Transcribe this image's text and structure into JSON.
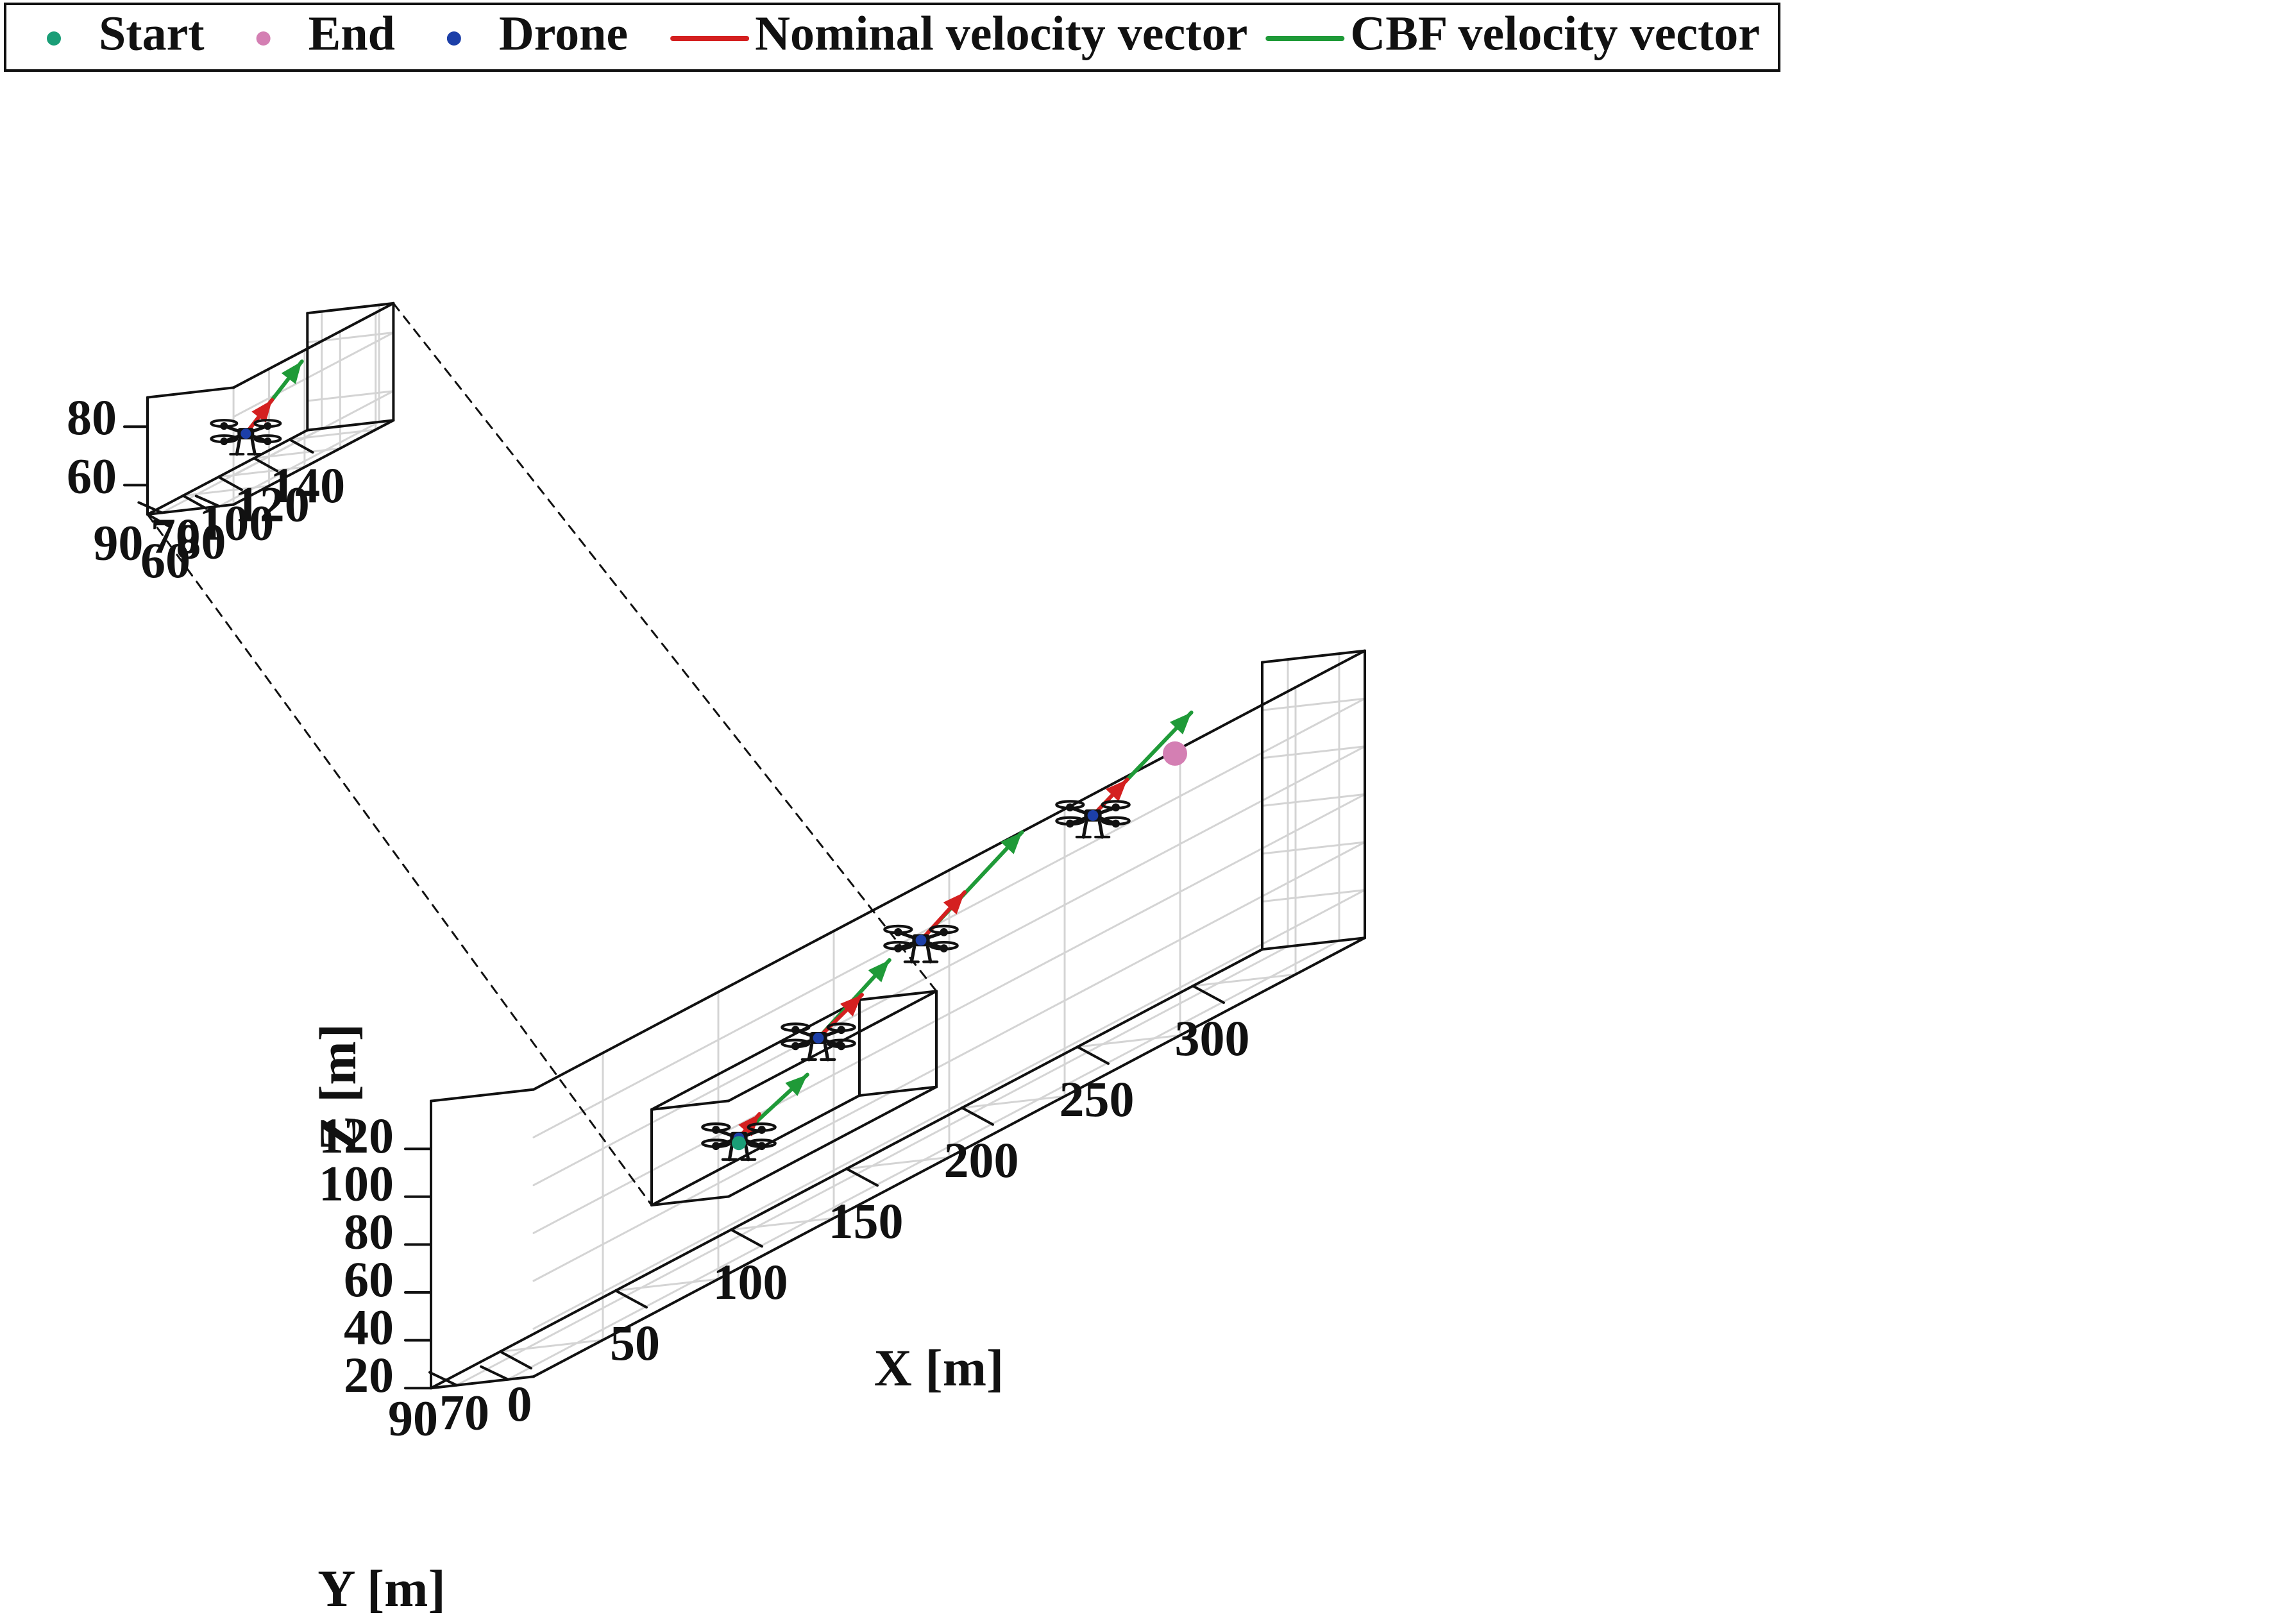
{
  "chart_data": {
    "type": "scatter",
    "projection": "3d",
    "legend": {
      "placement": "top-left",
      "entries": [
        {
          "label": "Start",
          "marker": "dot",
          "color": "#1a9e77"
        },
        {
          "label": "End",
          "marker": "dot",
          "color": "#d47fb3"
        },
        {
          "label": "Drone",
          "marker": "dot",
          "color": "#1c3fa8"
        },
        {
          "label": "Nominal velocity vector",
          "marker": "line",
          "color": "#d42020"
        },
        {
          "label": "CBF velocity vector",
          "marker": "line",
          "color": "#1f9a38"
        }
      ]
    },
    "colors": {
      "nominal": "#d42020",
      "cbf": "#1f9a38",
      "start": "#1a9e77",
      "end": "#d47fb3",
      "drone": "#1c3fa8"
    },
    "main": {
      "xlabel": "X [m]",
      "ylabel": "Y [m]",
      "zlabel": "Z [m]",
      "xticks": [
        0,
        50,
        100,
        150,
        200,
        250,
        300
      ],
      "yticks": [
        90,
        70
      ],
      "zticks": [
        20,
        40,
        60,
        80,
        100,
        120
      ],
      "xlim": [
        -30,
        330
      ],
      "ylim": [
        60,
        100
      ],
      "zlim": [
        20,
        140
      ],
      "grid": true,
      "start": {
        "x": 70,
        "y": 70,
        "z": 70
      },
      "end": {
        "x": 270,
        "y": 80,
        "z": 130
      },
      "drones": [
        {
          "x": 70,
          "y": 70,
          "z": 70
        },
        {
          "x": 110,
          "y": 75,
          "z": 92
        },
        {
          "x": 160,
          "y": 80,
          "z": 108
        },
        {
          "x": 240,
          "y": 85,
          "z": 120
        }
      ],
      "nominal_vectors": [
        {
          "x": 80,
          "y": 71,
          "z": 75
        },
        {
          "x": 130,
          "y": 76,
          "z": 100
        },
        {
          "x": 180,
          "y": 81,
          "z": 118
        },
        {
          "x": 256,
          "y": 86,
          "z": 127
        }
      ],
      "cbf_vectors": [
        {
          "x": 103,
          "y": 73,
          "z": 80
        },
        {
          "x": 143,
          "y": 77,
          "z": 108
        },
        {
          "x": 206,
          "y": 82,
          "z": 130
        },
        {
          "x": 286,
          "y": 88,
          "z": 140
        }
      ],
      "zoom_region": {
        "x": [
          60,
          150
        ],
        "y": [
          65,
          95
        ],
        "z": [
          50,
          90
        ]
      }
    },
    "inset": {
      "xticks": [
        60,
        80,
        100,
        120,
        140
      ],
      "yticks": [
        90,
        70
      ],
      "zticks": [
        60,
        80
      ],
      "xlim": [
        60,
        150
      ],
      "ylim": [
        65,
        95
      ],
      "zlim": [
        50,
        90
      ],
      "grid": true,
      "drone": {
        "x": 75,
        "y": 70,
        "z": 70
      },
      "nominal_vector": {
        "x": 93,
        "y": 72,
        "z": 76
      },
      "cbf_vector": {
        "x": 113,
        "y": 74,
        "z": 83
      }
    }
  }
}
